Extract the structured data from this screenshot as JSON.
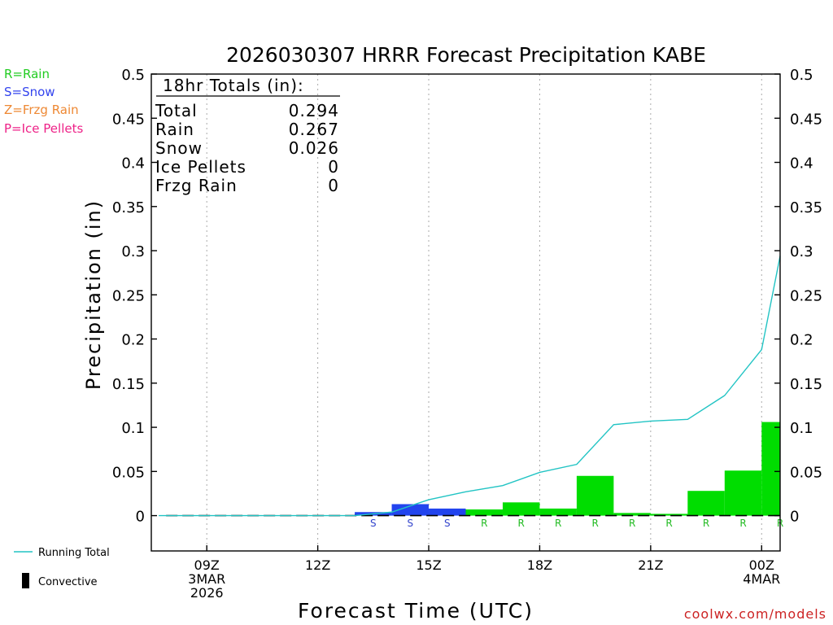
{
  "title": "2026030307 HRRR Forecast Precipitation KABE",
  "credit": "coolwx.com/models",
  "type_legend": [
    {
      "label": "R=Rain",
      "color": "#22cc22"
    },
    {
      "label": "S=Snow",
      "color": "#3344ee"
    },
    {
      "label": "Z=Frzg Rain",
      "color": "#ee8833"
    },
    {
      "label": "P=Ice Pellets",
      "color": "#ee2288"
    }
  ],
  "bottom_legend": {
    "running_total": "Running Total",
    "convective": "Convective"
  },
  "totals_box": {
    "header": "18hr Totals (in):",
    "rows": [
      {
        "label": "Total",
        "value": "0.294"
      },
      {
        "label": "Rain",
        "value": "0.267"
      },
      {
        "label": "Snow",
        "value": "0.026"
      },
      {
        "label": "Ice Pellets",
        "value": "0"
      },
      {
        "label": "Frzg Rain",
        "value": "0"
      }
    ]
  },
  "chart_data": {
    "type": "bar",
    "title": "2026030307 HRRR Forecast Precipitation KABE",
    "xlabel": "Forecast Time (UTC)",
    "ylabel": "Precipitation (in)",
    "ylim": [
      -0.04,
      0.5
    ],
    "y_ticks": [
      "0",
      "0.05",
      "0.1",
      "0.15",
      "0.2",
      "0.25",
      "0.3",
      "0.35",
      "0.4",
      "0.45",
      "0.5"
    ],
    "y_tick_values": [
      0,
      0.05,
      0.1,
      0.15,
      0.2,
      0.25,
      0.3,
      0.35,
      0.4,
      0.45,
      0.5
    ],
    "x_range_hours": [
      7.5,
      24.5
    ],
    "x_ticks": [
      {
        "hour": 9,
        "lines": [
          "09Z",
          "3MAR",
          "2026"
        ]
      },
      {
        "hour": 12,
        "lines": [
          "12Z"
        ]
      },
      {
        "hour": 15,
        "lines": [
          "15Z"
        ]
      },
      {
        "hour": 18,
        "lines": [
          "18Z"
        ]
      },
      {
        "hour": 21,
        "lines": [
          "21Z"
        ]
      },
      {
        "hour": 24,
        "lines": [
          "00Z",
          "4MAR"
        ]
      }
    ],
    "hours": [
      8,
      9,
      10,
      11,
      12,
      13,
      14,
      15,
      16,
      17,
      18,
      19,
      20,
      21,
      22,
      23,
      24,
      25
    ],
    "bars": [
      0,
      0,
      0,
      0,
      0,
      0,
      0.004,
      0.013,
      0.008,
      0.007,
      0.015,
      0.008,
      0.045,
      0.003,
      0.002,
      0.028,
      0.051,
      0.106
    ],
    "precip_type": [
      "",
      "",
      "",
      "",
      "",
      "",
      "S",
      "S",
      "S",
      "R",
      "R",
      "R",
      "R",
      "R",
      "R",
      "R",
      "R",
      "R"
    ],
    "running_total": [
      0,
      0,
      0,
      0,
      0,
      0,
      0.004,
      0.018,
      0.027,
      0.034,
      0.049,
      0.058,
      0.103,
      0.107,
      0.109,
      0.136,
      0.188,
      0.294
    ],
    "colors": {
      "rain": "#00dd00",
      "snow": "#2244ee",
      "line": "#22c4c4",
      "rain_label": "#22bb22",
      "snow_label": "#3344cc"
    }
  }
}
